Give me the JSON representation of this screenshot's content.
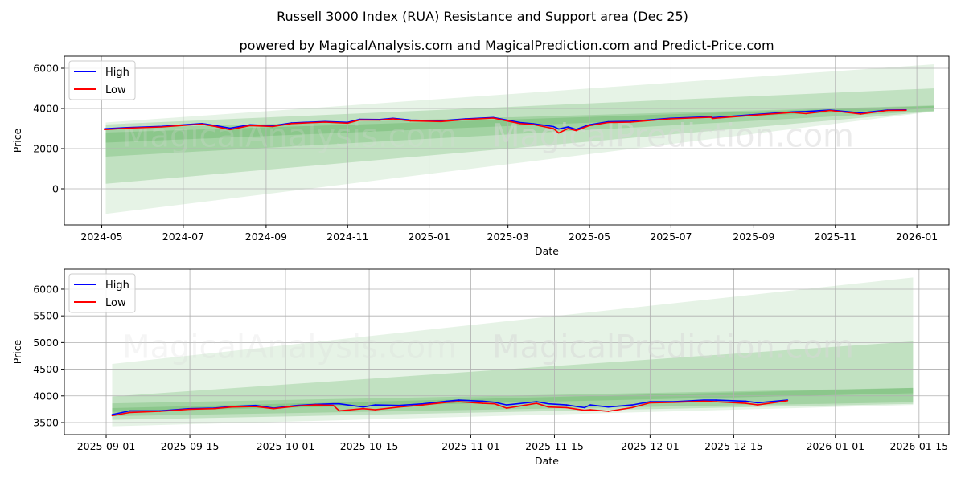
{
  "title": "Russell 3000 Index (RUA) Resistance and Support area (Dec 25)",
  "subtitle": "powered by MagicalAnalysis.com and MagicalPrediction.com and Predict-Price.com",
  "watermarks": [
    "MagicalAnalysis.com",
    "MagicalPrediction.com"
  ],
  "colors": {
    "high": "#0000ff",
    "low": "#ff0000",
    "band": "#2e9a2e"
  },
  "chart_data": [
    {
      "type": "line",
      "xlabel": "Date",
      "ylabel": "Price",
      "xlim": [
        "2024-04-03",
        "2026-01-25"
      ],
      "ylim": [
        -1800,
        6600
      ],
      "grid": true,
      "legend": {
        "position": "top-left",
        "entries": [
          "High",
          "Low"
        ]
      },
      "xticks": [
        "2024-05",
        "2024-07",
        "2024-09",
        "2024-11",
        "2025-01",
        "2025-03",
        "2025-05",
        "2025-07",
        "2025-09",
        "2025-11",
        "2026-01"
      ],
      "xtick_dates": [
        "2024-05-01",
        "2024-07-01",
        "2024-09-01",
        "2024-11-01",
        "2025-01-01",
        "2025-03-01",
        "2025-05-01",
        "2025-07-01",
        "2025-09-01",
        "2025-11-01",
        "2026-01-01"
      ],
      "yticks": [
        0,
        2000,
        4000,
        6000
      ],
      "ytick_labels": [
        "0",
        "2000",
        "4000",
        "6000"
      ],
      "bands": [
        {
          "start": "2024-05-04",
          "end": "2026-01-14",
          "start_range": [
            -1250,
            3300
          ],
          "end_range": [
            3850,
            6200
          ],
          "opacity": 0.12
        },
        {
          "start": "2024-05-04",
          "end": "2026-01-14",
          "start_range": [
            250,
            3200
          ],
          "end_range": [
            3850,
            5000
          ],
          "opacity": 0.2
        },
        {
          "start": "2024-05-04",
          "end": "2026-01-14",
          "start_range": [
            1600,
            3000
          ],
          "end_range": [
            3880,
            4150
          ],
          "opacity": 0.2
        },
        {
          "start": "2024-05-04",
          "end": "2026-01-14",
          "start_range": [
            2300,
            2800
          ],
          "end_range": [
            4000,
            4130
          ],
          "opacity": 0.2
        }
      ],
      "series": [
        {
          "name": "High",
          "dates": [
            "2024-05-03",
            "2024-05-20",
            "2024-06-15",
            "2024-07-15",
            "2024-07-25",
            "2024-08-05",
            "2024-08-20",
            "2024-09-06",
            "2024-09-20",
            "2024-10-15",
            "2024-11-01",
            "2024-11-10",
            "2024-11-25",
            "2024-12-05",
            "2024-12-18",
            "2025-01-10",
            "2025-01-28",
            "2025-02-18",
            "2025-03-10",
            "2025-03-20",
            "2025-04-04",
            "2025-04-08",
            "2025-04-15",
            "2025-04-21",
            "2025-05-01",
            "2025-05-15",
            "2025-06-01",
            "2025-06-30",
            "2025-07-31",
            "2025-08-01",
            "2025-08-29",
            "2025-09-30",
            "2025-10-10",
            "2025-10-28",
            "2025-11-20",
            "2025-12-10",
            "2025-12-24"
          ],
          "values": [
            2990,
            3050,
            3110,
            3250,
            3150,
            3020,
            3190,
            3140,
            3280,
            3350,
            3310,
            3460,
            3450,
            3510,
            3420,
            3390,
            3480,
            3550,
            3300,
            3240,
            3100,
            2980,
            3080,
            2960,
            3190,
            3340,
            3360,
            3510,
            3590,
            3540,
            3680,
            3830,
            3850,
            3920,
            3780,
            3920,
            3930
          ]
        },
        {
          "name": "Low",
          "dates": [
            "2024-05-03",
            "2024-05-20",
            "2024-06-15",
            "2024-07-15",
            "2024-07-25",
            "2024-08-05",
            "2024-08-20",
            "2024-09-06",
            "2024-09-20",
            "2024-10-15",
            "2024-11-01",
            "2024-11-10",
            "2024-11-25",
            "2024-12-05",
            "2024-12-18",
            "2025-01-10",
            "2025-01-28",
            "2025-02-18",
            "2025-03-10",
            "2025-03-20",
            "2025-04-04",
            "2025-04-08",
            "2025-04-15",
            "2025-04-21",
            "2025-05-01",
            "2025-05-15",
            "2025-06-01",
            "2025-06-30",
            "2025-07-31",
            "2025-08-01",
            "2025-08-29",
            "2025-09-30",
            "2025-10-10",
            "2025-10-28",
            "2025-11-20",
            "2025-12-10",
            "2025-12-24"
          ],
          "values": [
            2950,
            3020,
            3080,
            3220,
            3100,
            2950,
            3150,
            3100,
            3250,
            3320,
            3270,
            3430,
            3420,
            3480,
            3380,
            3350,
            3450,
            3520,
            3250,
            3200,
            3000,
            2780,
            3000,
            2900,
            3150,
            3300,
            3320,
            3480,
            3560,
            3500,
            3650,
            3800,
            3740,
            3900,
            3720,
            3900,
            3910
          ]
        }
      ]
    },
    {
      "type": "line",
      "xlabel": "Date",
      "ylabel": "Price",
      "xlim": [
        "2025-08-25",
        "2026-01-20"
      ],
      "ylim": [
        3274,
        6376
      ],
      "grid": true,
      "legend": {
        "position": "top-left",
        "entries": [
          "High",
          "Low"
        ]
      },
      "xticks": [
        "2025-09-01",
        "2025-09-15",
        "2025-10-01",
        "2025-10-15",
        "2025-11-01",
        "2025-11-15",
        "2025-12-01",
        "2025-12-15",
        "2026-01-01",
        "2026-01-15"
      ],
      "xtick_dates": [
        "2025-09-01",
        "2025-09-15",
        "2025-10-01",
        "2025-10-15",
        "2025-11-01",
        "2025-11-15",
        "2025-12-01",
        "2025-12-15",
        "2026-01-01",
        "2026-01-15"
      ],
      "yticks": [
        3500,
        4000,
        4500,
        5000,
        5500,
        6000
      ],
      "ytick_labels": [
        "3500",
        "4000",
        "4500",
        "5000",
        "5500",
        "6000"
      ],
      "bands": [
        {
          "start": "2025-09-02",
          "end": "2026-01-14",
          "start_range": [
            3430,
            4600
          ],
          "end_range": [
            3830,
            6220
          ],
          "opacity": 0.12
        },
        {
          "start": "2025-09-02",
          "end": "2026-01-14",
          "start_range": [
            3550,
            3990
          ],
          "end_range": [
            3850,
            5020
          ],
          "opacity": 0.2
        },
        {
          "start": "2025-09-02",
          "end": "2026-01-14",
          "start_range": [
            3620,
            3860
          ],
          "end_range": [
            3880,
            4150
          ],
          "opacity": 0.2
        },
        {
          "start": "2025-09-02",
          "end": "2026-01-14",
          "start_range": [
            3700,
            3770
          ],
          "end_range": [
            4050,
            4150
          ],
          "opacity": 0.2
        }
      ],
      "series": [
        {
          "name": "High",
          "dates": [
            "2025-09-02",
            "2025-09-05",
            "2025-09-10",
            "2025-09-15",
            "2025-09-19",
            "2025-09-22",
            "2025-09-26",
            "2025-09-29",
            "2025-10-03",
            "2025-10-06",
            "2025-10-09",
            "2025-10-10",
            "2025-10-14",
            "2025-10-16",
            "2025-10-20",
            "2025-10-24",
            "2025-10-28",
            "2025-10-30",
            "2025-11-03",
            "2025-11-05",
            "2025-11-07",
            "2025-11-12",
            "2025-11-14",
            "2025-11-17",
            "2025-11-20",
            "2025-11-21",
            "2025-11-24",
            "2025-11-28",
            "2025-12-01",
            "2025-12-05",
            "2025-12-10",
            "2025-12-12",
            "2025-12-17",
            "2025-12-19",
            "2025-12-24"
          ],
          "values": [
            3650,
            3720,
            3720,
            3760,
            3770,
            3800,
            3820,
            3770,
            3820,
            3840,
            3850,
            3850,
            3790,
            3830,
            3820,
            3850,
            3900,
            3920,
            3900,
            3880,
            3830,
            3890,
            3850,
            3830,
            3780,
            3830,
            3790,
            3830,
            3890,
            3890,
            3920,
            3920,
            3900,
            3870,
            3920
          ]
        },
        {
          "name": "Low",
          "dates": [
            "2025-09-02",
            "2025-09-05",
            "2025-09-10",
            "2025-09-15",
            "2025-09-19",
            "2025-09-22",
            "2025-09-26",
            "2025-09-29",
            "2025-10-03",
            "2025-10-06",
            "2025-10-09",
            "2025-10-10",
            "2025-10-14",
            "2025-10-16",
            "2025-10-20",
            "2025-10-24",
            "2025-10-28",
            "2025-10-30",
            "2025-11-03",
            "2025-11-05",
            "2025-11-07",
            "2025-11-12",
            "2025-11-14",
            "2025-11-17",
            "2025-11-20",
            "2025-11-21",
            "2025-11-24",
            "2025-11-28",
            "2025-12-01",
            "2025-12-05",
            "2025-12-10",
            "2025-12-12",
            "2025-12-17",
            "2025-12-19",
            "2025-12-24"
          ],
          "values": [
            3630,
            3690,
            3710,
            3750,
            3760,
            3790,
            3800,
            3760,
            3810,
            3830,
            3820,
            3720,
            3760,
            3740,
            3790,
            3830,
            3880,
            3890,
            3860,
            3850,
            3770,
            3860,
            3790,
            3780,
            3730,
            3740,
            3710,
            3780,
            3870,
            3880,
            3900,
            3890,
            3860,
            3830,
            3910
          ]
        }
      ]
    }
  ]
}
